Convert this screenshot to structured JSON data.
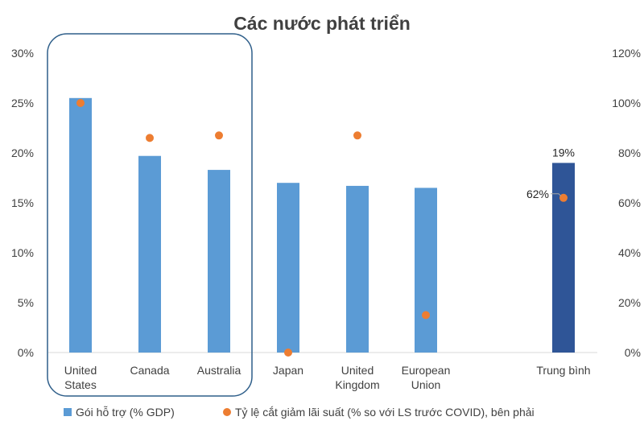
{
  "chart_data": {
    "type": "bar",
    "title": "Các nước phát triển",
    "categories": [
      [
        "United",
        "States"
      ],
      [
        "Canada"
      ],
      [
        "Australia"
      ],
      [
        "Japan"
      ],
      [
        "United",
        "Kingdom"
      ],
      [
        "European",
        "Union"
      ],
      [
        "Trung bình"
      ]
    ],
    "series": [
      {
        "name": "Gói hỗ trợ (% GDP)",
        "type": "bar",
        "axis": "left",
        "values": [
          25.5,
          19.7,
          18.3,
          17.0,
          16.7,
          16.5,
          19.0
        ],
        "highlight_index": 6,
        "data_labels": [
          "",
          "",
          "",
          "",
          "",
          "",
          "19%"
        ]
      },
      {
        "name": "Tỷ lệ cắt giảm lãi suất (% so với LS trước COVID), bên phải",
        "type": "scatter",
        "axis": "right",
        "values": [
          100,
          86,
          87,
          0,
          87,
          15,
          62
        ],
        "data_labels": [
          "",
          "",
          "",
          "",
          "",
          "",
          "62%"
        ]
      }
    ],
    "y_left": {
      "ylim": [
        0,
        30
      ],
      "ticks": [
        "0%",
        "5%",
        "10%",
        "15%",
        "20%",
        "25%",
        "30%"
      ]
    },
    "y_right": {
      "ylim": [
        0,
        120
      ],
      "ticks": [
        "0%",
        "20%",
        "40%",
        "60%",
        "80%",
        "100%",
        "120%"
      ]
    },
    "grid": false,
    "legend_position": "bottom",
    "highlight_group": [
      0,
      1,
      2
    ],
    "colors": {
      "bar": "#5b9bd5",
      "bar_highlight": "#2f5597",
      "dot": "#ed7d31",
      "text": "#404040",
      "frame": "#2f5f8a",
      "axis": "#d9d9d9"
    }
  }
}
